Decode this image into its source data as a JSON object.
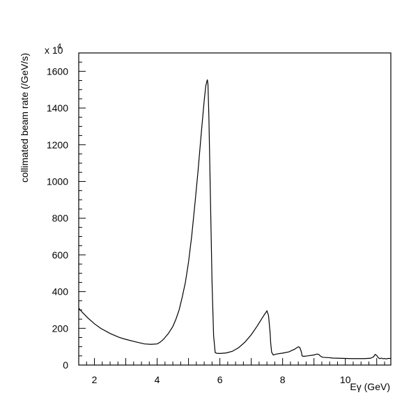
{
  "chart_data": {
    "type": "line",
    "title": "",
    "xlabel": "Eγ (GeV)",
    "ylabel": "collimated beam rate (/GeV/s)",
    "y_multiplier_label": "x 10",
    "y_multiplier_exponent": "4",
    "xlim": [
      1.5,
      11.45
    ],
    "ylim": [
      0,
      1700
    ],
    "x_ticks": [
      2,
      4,
      6,
      8,
      10
    ],
    "y_ticks": [
      0,
      200,
      400,
      600,
      800,
      1000,
      1200,
      1400,
      1600
    ],
    "grid": false,
    "series": [
      {
        "name": "",
        "x": [
          1.5,
          1.6,
          1.8,
          2.0,
          2.2,
          2.5,
          2.8,
          3.0,
          3.3,
          3.6,
          3.8,
          4.0,
          4.1,
          4.2,
          4.35,
          4.5,
          4.6,
          4.7,
          4.8,
          4.9,
          5.0,
          5.1,
          5.2,
          5.3,
          5.4,
          5.5,
          5.55,
          5.6,
          5.62,
          5.65,
          5.7,
          5.75,
          5.8,
          5.85,
          5.9,
          6.0,
          6.2,
          6.4,
          6.6,
          6.8,
          7.0,
          7.2,
          7.4,
          7.5,
          7.55,
          7.6,
          7.62,
          7.65,
          7.7,
          7.75,
          7.8,
          8.0,
          8.2,
          8.4,
          8.5,
          8.55,
          8.6,
          8.62,
          8.65,
          8.7,
          8.8,
          9.0,
          9.1,
          9.15,
          9.2,
          9.25,
          9.3,
          9.4,
          9.5,
          9.6,
          9.8,
          10.0,
          10.2,
          10.4,
          10.6,
          10.8,
          10.9,
          10.95,
          11.0,
          11.05,
          11.1,
          11.15,
          11.2,
          11.25,
          11.3,
          11.35,
          11.45
        ],
        "y": [
          310,
          290,
          255,
          225,
          200,
          172,
          150,
          140,
          127,
          115,
          113,
          115,
          125,
          140,
          170,
          210,
          250,
          300,
          370,
          450,
          560,
          700,
          870,
          1050,
          1250,
          1440,
          1520,
          1555,
          1530,
          1350,
          900,
          450,
          160,
          68,
          64,
          63,
          66,
          75,
          95,
          125,
          165,
          215,
          270,
          295,
          270,
          180,
          120,
          70,
          55,
          57,
          60,
          65,
          72,
          88,
          100,
          95,
          70,
          50,
          48,
          48,
          50,
          55,
          60,
          58,
          50,
          44,
          42,
          41,
          40,
          38,
          37,
          36,
          35,
          35,
          35,
          37,
          45,
          58,
          52,
          40,
          35,
          38,
          34,
          36,
          33,
          36,
          36
        ]
      }
    ]
  }
}
